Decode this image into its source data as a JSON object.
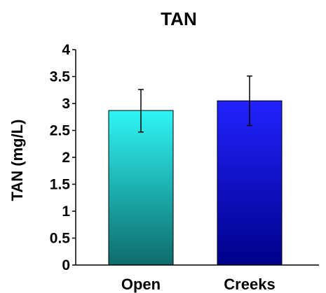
{
  "chart_data": {
    "type": "bar",
    "title": "TAN",
    "xlabel": "",
    "ylabel": "TAN (mg/L)",
    "categories": [
      "Open",
      "Creeks"
    ],
    "values": [
      2.87,
      3.05
    ],
    "error_bars": [
      {
        "low": 2.47,
        "high": 3.26
      },
      {
        "low": 2.59,
        "high": 3.51
      }
    ],
    "ylim": [
      0,
      4
    ],
    "yticks": [
      "0",
      "0.5",
      "1",
      "1.5",
      "2",
      "2.5",
      "3",
      "3.5",
      "4"
    ],
    "grid": false,
    "bar_colors": [
      {
        "top": "#2ff5f5",
        "bottom": "#0d6b6b"
      },
      {
        "top": "#2222ff",
        "bottom": "#00008a"
      }
    ]
  }
}
